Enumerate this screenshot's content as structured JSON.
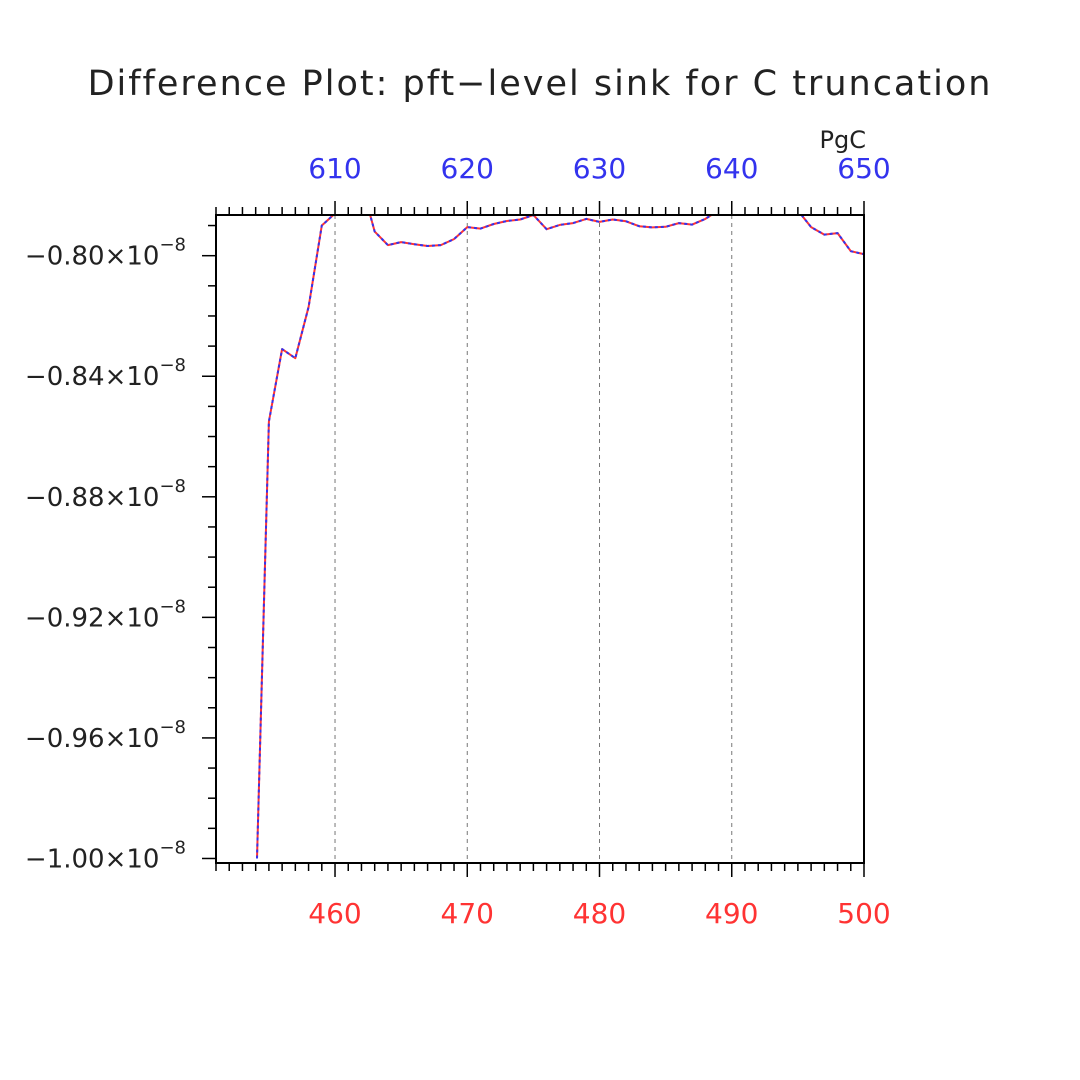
{
  "chart_data": {
    "type": "line",
    "title": "Difference Plot: pft−level sink for C truncation",
    "top_axis_unit": "PgC",
    "x_bottom": {
      "range": [
        451,
        500
      ],
      "ticks": [
        460,
        470,
        480,
        490,
        500
      ],
      "tick_labels": [
        "460",
        "470",
        "480",
        "490",
        "500"
      ],
      "color": "#ff3333"
    },
    "x_top": {
      "range": [
        601,
        650
      ],
      "ticks": [
        610,
        620,
        630,
        640,
        650
      ],
      "tick_labels": [
        "610",
        "620",
        "630",
        "640",
        "650"
      ],
      "color": "#3333ee"
    },
    "y": {
      "range": [
        -1.0015,
        -0.7865
      ],
      "ticks": [
        -1.0,
        -0.96,
        -0.92,
        -0.88,
        -0.84,
        -0.8
      ],
      "tick_labels": [
        {
          "mant": "−1.00×10",
          "exp": "−8"
        },
        {
          "mant": "−0.96×10",
          "exp": "−8"
        },
        {
          "mant": "−0.92×10",
          "exp": "−8"
        },
        {
          "mant": "−0.88×10",
          "exp": "−8"
        },
        {
          "mant": "−0.84×10",
          "exp": "−8"
        },
        {
          "mant": "−0.80×10",
          "exp": "−8"
        }
      ],
      "scale_exponent": -8
    },
    "grid": "dashed vertical at major x ticks",
    "series": [
      {
        "color": "#ff3333",
        "style": "solid",
        "x": [
          454.1,
          455,
          456,
          457,
          458,
          459,
          460,
          461,
          462,
          463,
          464,
          465,
          466,
          467,
          468,
          469,
          470,
          471,
          472,
          473,
          474,
          475,
          476,
          477,
          478,
          479,
          480,
          481,
          482,
          483,
          484,
          485,
          486,
          487,
          488,
          489,
          490,
          491,
          492,
          493,
          494,
          495,
          496,
          497,
          498,
          499,
          500
        ],
        "y": [
          -1.0,
          -0.855,
          -0.831,
          -0.834,
          -0.817,
          -0.79,
          -0.786,
          -0.78,
          -0.776,
          -0.792,
          -0.7965,
          -0.7955,
          -0.7962,
          -0.7968,
          -0.7965,
          -0.7945,
          -0.7905,
          -0.791,
          -0.7895,
          -0.7885,
          -0.788,
          -0.7865,
          -0.7912,
          -0.7898,
          -0.7892,
          -0.7878,
          -0.7888,
          -0.788,
          -0.7886,
          -0.7902,
          -0.7906,
          -0.7904,
          -0.7892,
          -0.7897,
          -0.7878,
          -0.785,
          -0.782,
          -0.78,
          -0.779,
          -0.78,
          -0.782,
          -0.785,
          -0.7905,
          -0.793,
          -0.7925,
          -0.7985,
          -0.7995
        ]
      },
      {
        "color": "#3333ee",
        "style": "dashed",
        "x": [
          454.1,
          455,
          456,
          457,
          458,
          459,
          460,
          461,
          462,
          463,
          464,
          465,
          466,
          467,
          468,
          469,
          470,
          471,
          472,
          473,
          474,
          475,
          476,
          477,
          478,
          479,
          480,
          481,
          482,
          483,
          484,
          485,
          486,
          487,
          488,
          489,
          490,
          491,
          492,
          493,
          494,
          495,
          496,
          497,
          498,
          499,
          500
        ],
        "y": [
          -1.0,
          -0.855,
          -0.831,
          -0.834,
          -0.817,
          -0.79,
          -0.786,
          -0.78,
          -0.776,
          -0.792,
          -0.7965,
          -0.7955,
          -0.7962,
          -0.7968,
          -0.7965,
          -0.7945,
          -0.7905,
          -0.791,
          -0.7895,
          -0.7885,
          -0.788,
          -0.7865,
          -0.7912,
          -0.7898,
          -0.7892,
          -0.7878,
          -0.7888,
          -0.788,
          -0.7886,
          -0.7902,
          -0.7906,
          -0.7904,
          -0.7892,
          -0.7897,
          -0.7878,
          -0.785,
          -0.782,
          -0.78,
          -0.779,
          -0.78,
          -0.782,
          -0.785,
          -0.7905,
          -0.793,
          -0.7925,
          -0.7985,
          -0.7995
        ]
      }
    ]
  }
}
